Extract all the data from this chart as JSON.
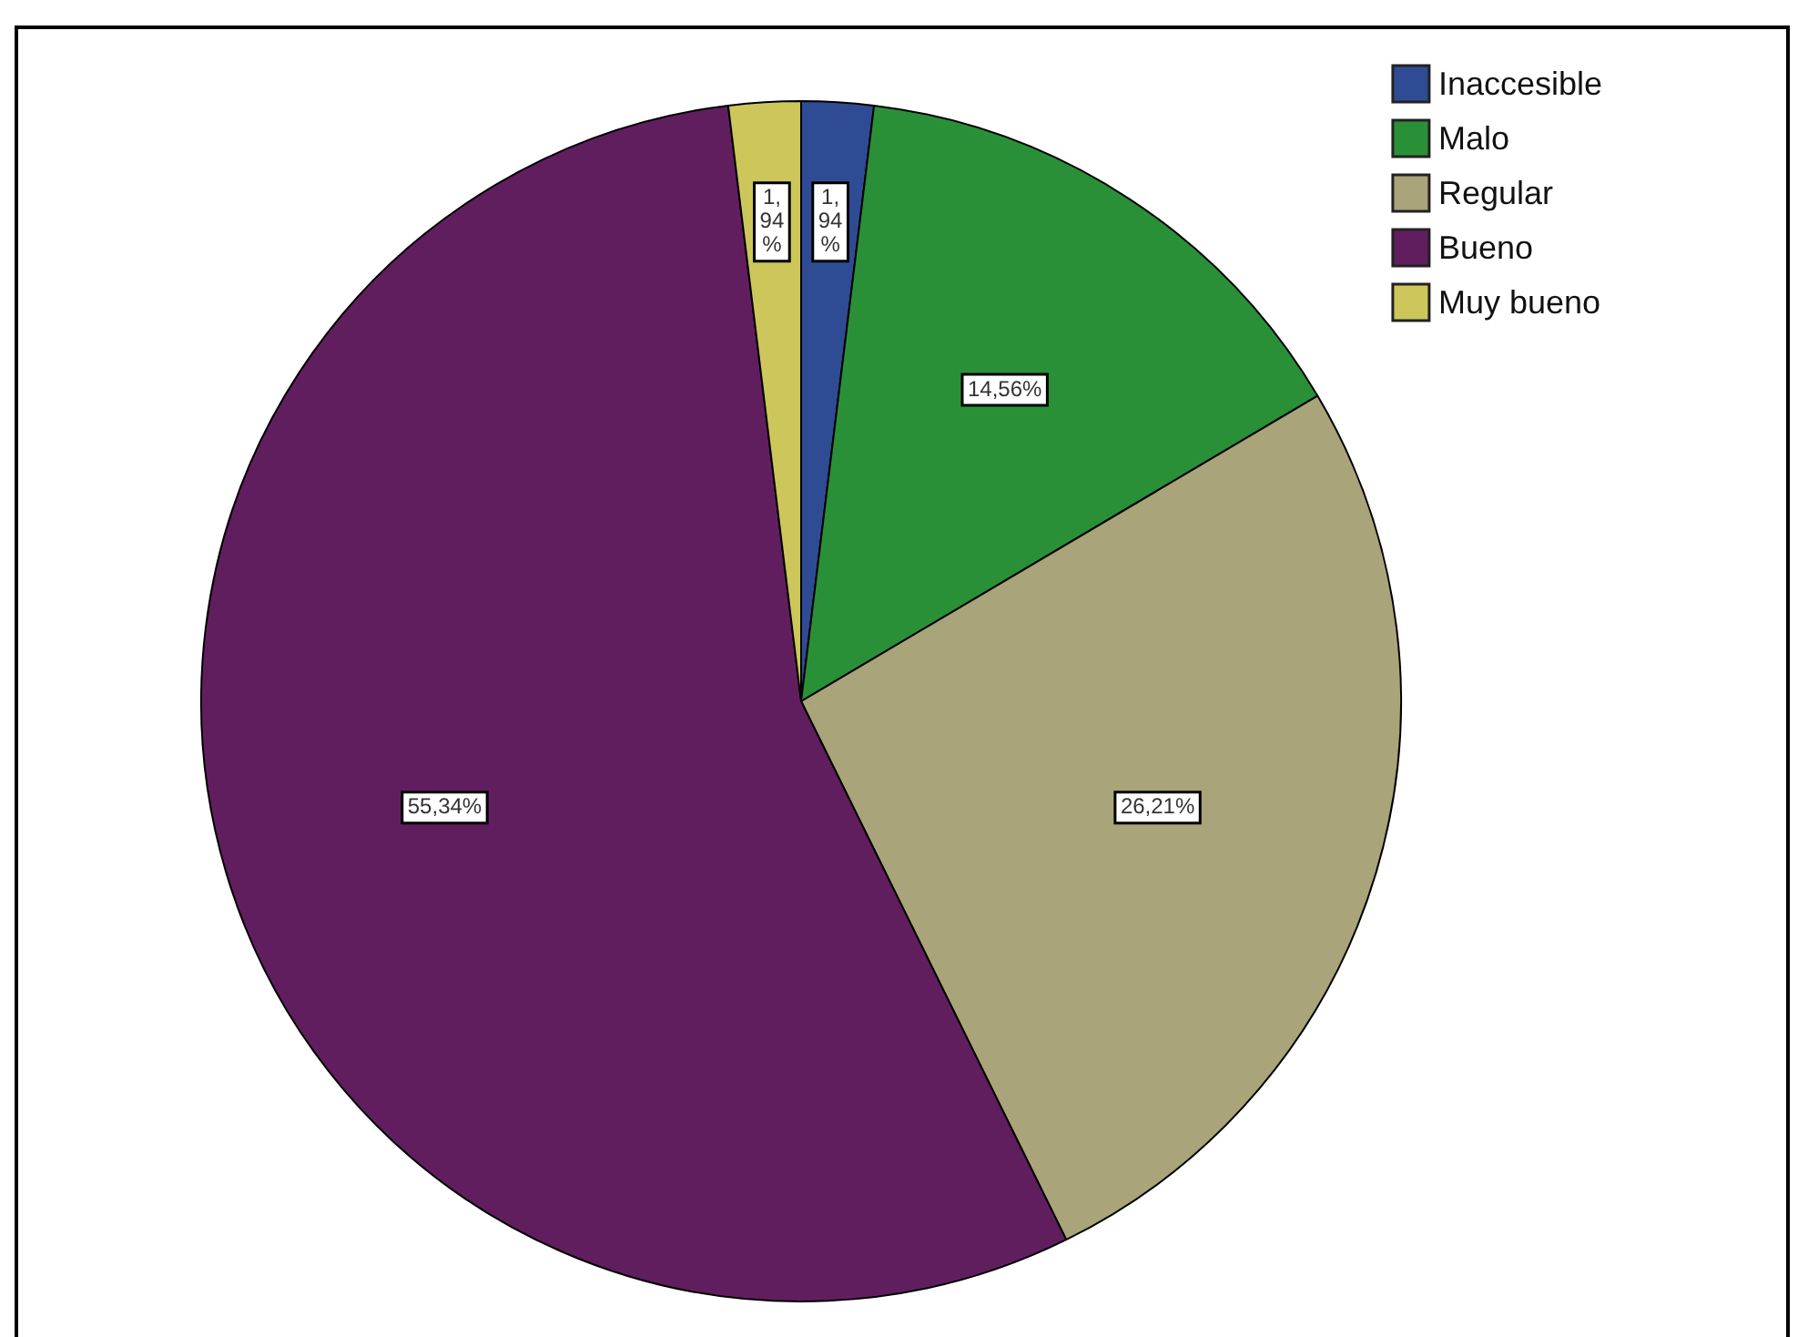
{
  "chart_data": {
    "type": "pie",
    "categories": [
      "Inaccesible",
      "Malo",
      "Regular",
      "Bueno",
      "Muy bueno"
    ],
    "values": [
      1.94,
      14.56,
      26.21,
      55.34,
      1.94
    ],
    "colors": [
      "#2f4b94",
      "#2a9038",
      "#a9a479",
      "#611e5e",
      "#cdc65b"
    ],
    "value_labels": [
      "1,94%",
      "14,56%",
      "26,21%",
      "55,34%",
      "1,94%"
    ],
    "legend": "top right"
  }
}
